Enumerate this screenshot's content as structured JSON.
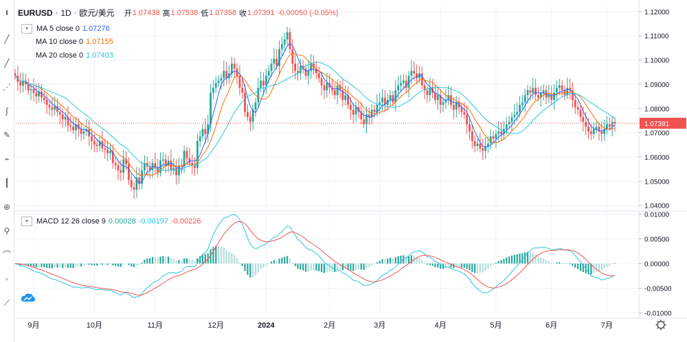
{
  "header": {
    "symbol": "EURUSD",
    "sep": "·",
    "interval": "1D",
    "pair_name": "欧元/美元",
    "open_label": "开",
    "open": "1.07438",
    "high_label": "高",
    "high": "1.07538",
    "low_label": "低",
    "low": "1.07358",
    "close_label": "收",
    "close": "1.07391",
    "change": "-0.00050 (-0.05%)"
  },
  "indicators": [
    {
      "name": "MA 5 close 0",
      "value": "1.07276",
      "color": "#2962ff"
    },
    {
      "name": "MA 10 close 0",
      "value": "1.07155",
      "color": "#ff6d00"
    },
    {
      "name": "MA 20 close 0",
      "value": "1.07403",
      "color": "#26c6da"
    }
  ],
  "macd_legend": {
    "name": "MACD 12 26 close 9",
    "v1": "0.00028",
    "v1_color": "#26a69a",
    "v2": "-0.00197",
    "v2_color": "#26c6da",
    "v3": "-0.00226",
    "v3_color": "#ef5350"
  },
  "colors": {
    "up": "#26a69a",
    "down": "#ef5350",
    "grid": "#f0f3fa",
    "axis_text": "#131722",
    "price_line": "#ef5350",
    "macd_line": "#26c6da",
    "signal_line": "#ef5350",
    "hist_up": "#26a69a",
    "hist_up_light": "#b2dfdb",
    "hist_down": "#26a69a"
  },
  "current_price_tag": "1.07391",
  "settings_icon": "gear-icon",
  "toolbar_icons": [
    "crosshair-icon",
    "trend-line-icon",
    "pitchfork-icon",
    "brush-icon",
    "text-icon",
    "pattern-icon",
    "prediction-icon",
    "ruler-icon",
    "zoom-icon",
    "magnet-icon",
    "lock-icon",
    "eye-icon",
    "trash-icon"
  ],
  "chart_data": [
    {
      "type": "candlestick",
      "title": "EURUSD · 1D · 欧元/美元",
      "x_ticks": [
        "9月",
        "10月",
        "11月",
        "12月",
        "2024",
        "2月",
        "3月",
        "4月",
        "5月",
        "6月",
        "7月"
      ],
      "y_ticks": [
        "1.12000",
        "1.11000",
        "1.10000",
        "1.09000",
        "1.08000",
        "1.07000",
        "1.06000",
        "1.05000",
        "1.04000"
      ],
      "ylim": [
        1.0385,
        1.1225
      ],
      "last_price": 1.07391,
      "series": [
        {
          "name": "MA 5 close 0"
        },
        {
          "name": "MA 10 close 0"
        },
        {
          "name": "MA 20 close 0"
        }
      ],
      "close": [
        1.0935,
        1.091,
        1.0895,
        1.0915,
        1.09,
        1.0875,
        1.088,
        1.0865,
        1.085,
        1.087,
        1.0845,
        1.0835,
        1.0815,
        1.0805,
        1.0795,
        1.081,
        1.0785,
        1.0775,
        1.0755,
        1.0765,
        1.073,
        1.0725,
        1.071,
        1.0735,
        1.0715,
        1.0695,
        1.0705,
        1.0715,
        1.0685,
        1.0665,
        1.065,
        1.0645,
        1.0665,
        1.0635,
        1.063,
        1.0615,
        1.0625,
        1.0575,
        1.0565,
        1.0545,
        1.0535,
        1.059,
        1.057,
        1.0505,
        1.0475,
        1.0465,
        1.0515,
        1.049,
        1.0545,
        1.0575,
        1.056,
        1.0545,
        1.0575,
        1.0555,
        1.0535,
        1.0585,
        1.059,
        1.0565,
        1.0585,
        1.0545,
        1.0555,
        1.0525,
        1.0565,
        1.056,
        1.0625,
        1.0595,
        1.0575,
        1.0565,
        1.0555,
        1.0665,
        1.0685,
        1.0715,
        1.0695,
        1.0735,
        1.0865,
        1.0885,
        1.0905,
        1.0915,
        1.0925,
        1.0955,
        1.0925,
        1.0945,
        1.0985,
        1.0965,
        1.0935,
        1.0885,
        1.0865,
        1.0785,
        1.0765,
        1.0745,
        1.0795,
        1.0825,
        1.0885,
        1.0915,
        1.0895,
        1.0935,
        1.0955,
        1.0985,
        1.1005,
        1.0975,
        1.1045,
        1.1065,
        1.1085,
        1.1115,
        1.1045,
        1.0985,
        1.0955,
        1.0945,
        1.0975,
        1.0965,
        1.0935,
        1.0955,
        1.0985,
        1.0965,
        1.0945,
        1.0925,
        1.0895,
        1.0875,
        1.0905,
        1.0885,
        1.0875,
        1.0855,
        1.0895,
        1.0875,
        1.0835,
        1.0855,
        1.0815,
        1.0795,
        1.0775,
        1.0805,
        1.0785,
        1.0755,
        1.0735,
        1.0775,
        1.0765,
        1.0795,
        1.0785,
        1.0815,
        1.0825,
        1.0845,
        1.0815,
        1.0835,
        1.0855,
        1.0825,
        1.0875,
        1.0895,
        1.0905,
        1.0915,
        1.0885,
        1.0935,
        1.0955,
        1.0945,
        1.0925,
        1.0945,
        1.0895,
        1.0875,
        1.0855,
        1.0885,
        1.0865,
        1.0835,
        1.0855,
        1.0815,
        1.0825,
        1.0835,
        1.0855,
        1.0815,
        1.0795,
        1.0825,
        1.0805,
        1.0785,
        1.0775,
        1.0735,
        1.0705,
        1.0665,
        1.0645,
        1.0655,
        1.0635,
        1.0625,
        1.0645,
        1.0655,
        1.0685,
        1.0675,
        1.0695,
        1.0705,
        1.0695,
        1.0715,
        1.0735,
        1.0745,
        1.0765,
        1.0775,
        1.0785,
        1.0815,
        1.0825,
        1.0855,
        1.0875,
        1.0865,
        1.0885,
        1.0855,
        1.0845,
        1.0865,
        1.0875,
        1.0845,
        1.0855,
        1.0835,
        1.0865,
        1.0885,
        1.0895,
        1.0875,
        1.0855,
        1.0885,
        1.0875,
        1.0835,
        1.0805,
        1.0795,
        1.0765,
        1.0745,
        1.0725,
        1.0705,
        1.0695,
        1.0715,
        1.0725,
        1.0705,
        1.0695,
        1.0715,
        1.0735,
        1.0725,
        1.0745,
        1.0739
      ]
    },
    {
      "type": "line+bar",
      "title": "MACD 12 26 close 9",
      "y_ticks": [
        "0.01000",
        "0.00500",
        "0.00000",
        "-0.00500",
        "-0.01000"
      ],
      "ylim": [
        -0.0102,
        0.0102
      ],
      "series": [
        {
          "name": "MACD",
          "values_by": "computed from close"
        },
        {
          "name": "signal",
          "values_by": "computed from close"
        },
        {
          "name": "histogram",
          "values_by": "computed from close"
        }
      ]
    }
  ]
}
